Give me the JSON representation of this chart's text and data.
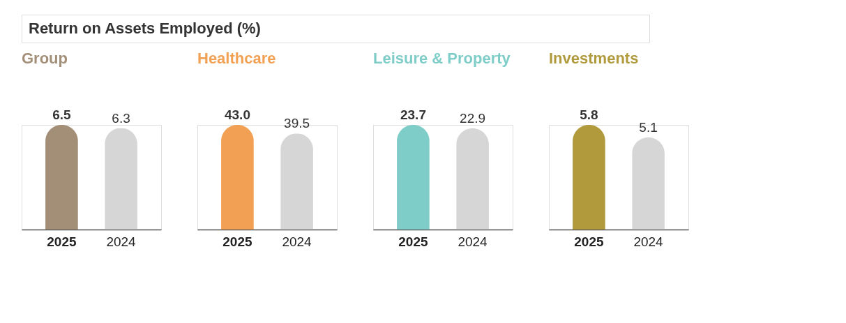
{
  "chart_data": [
    {
      "type": "other",
      "title": "Return on Assets Employed (%)"
    },
    {
      "type": "bar",
      "title": "Group",
      "categories": [
        "2025",
        "2024"
      ],
      "values": [
        6.5,
        6.3
      ],
      "colors": [
        "#a38f78",
        "#d6d6d6"
      ],
      "value_labels": [
        "6.5",
        "6.3"
      ]
    },
    {
      "type": "bar",
      "title": "Healthcare",
      "categories": [
        "2025",
        "2024"
      ],
      "values": [
        43.0,
        39.5
      ],
      "colors": [
        "#f2a154",
        "#d6d6d6"
      ],
      "value_labels": [
        "43.0",
        "39.5"
      ]
    },
    {
      "type": "bar",
      "title": "Leisure & Property",
      "categories": [
        "2025",
        "2024"
      ],
      "values": [
        23.7,
        22.9
      ],
      "colors": [
        "#7fcdc8",
        "#d6d6d6"
      ],
      "value_labels": [
        "23.7",
        "22.9"
      ]
    },
    {
      "type": "bar",
      "title": "Investments",
      "categories": [
        "2025",
        "2024"
      ],
      "values": [
        5.8,
        5.1
      ],
      "colors": [
        "#b09a3c",
        "#d6d6d6"
      ],
      "value_labels": [
        "5.8",
        "5.1"
      ]
    }
  ]
}
